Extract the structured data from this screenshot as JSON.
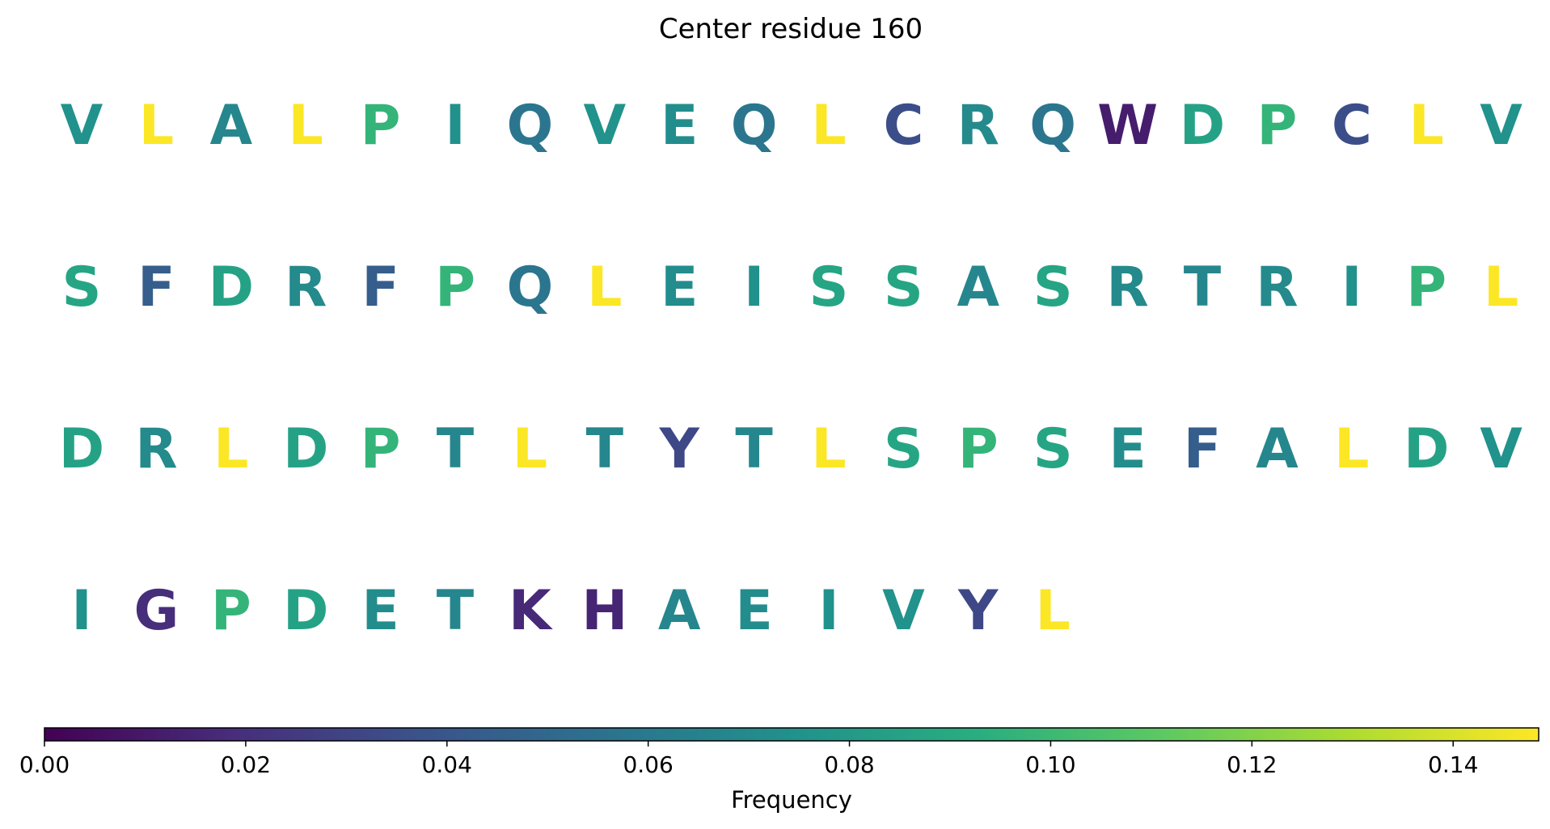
{
  "chart_data": {
    "type": "heatmap",
    "title": "Center residue 160",
    "rows": [
      [
        "V",
        "L",
        "A",
        "L",
        "P",
        "I",
        "Q",
        "V",
        "E",
        "Q",
        "L",
        "C",
        "R",
        "Q",
        "W",
        "D",
        "P",
        "C",
        "L",
        "V"
      ],
      [
        "S",
        "F",
        "D",
        "R",
        "F",
        "P",
        "Q",
        "L",
        "E",
        "I",
        "S",
        "S",
        "A",
        "S",
        "R",
        "T",
        "R",
        "I",
        "P",
        "L"
      ],
      [
        "D",
        "R",
        "L",
        "D",
        "P",
        "T",
        "L",
        "T",
        "Y",
        "T",
        "L",
        "S",
        "P",
        "S",
        "E",
        "F",
        "A",
        "L",
        "D",
        "V"
      ],
      [
        "I",
        "G",
        "P",
        "D",
        "E",
        "T",
        "K",
        "H",
        "A",
        "E",
        "I",
        "V",
        "Y",
        "L"
      ]
    ],
    "residue_frequency": {
      "A": 0.068,
      "C": 0.035,
      "D": 0.085,
      "E": 0.072,
      "F": 0.044,
      "G": 0.019,
      "H": 0.015,
      "I": 0.074,
      "K": 0.017,
      "L": 0.148,
      "P": 0.097,
      "Q": 0.058,
      "R": 0.07,
      "S": 0.087,
      "T": 0.068,
      "V": 0.075,
      "W": 0.012,
      "Y": 0.032
    },
    "colorbar": {
      "colormap": "viridis",
      "range": [
        0,
        0.1485
      ],
      "ticks": [
        "0.00",
        "0.02",
        "0.04",
        "0.06",
        "0.08",
        "0.10",
        "0.12",
        "0.14"
      ],
      "tick_values": [
        0,
        0.02,
        0.04,
        0.06,
        0.08,
        0.1,
        0.12,
        0.14
      ],
      "label": "Frequency"
    }
  }
}
